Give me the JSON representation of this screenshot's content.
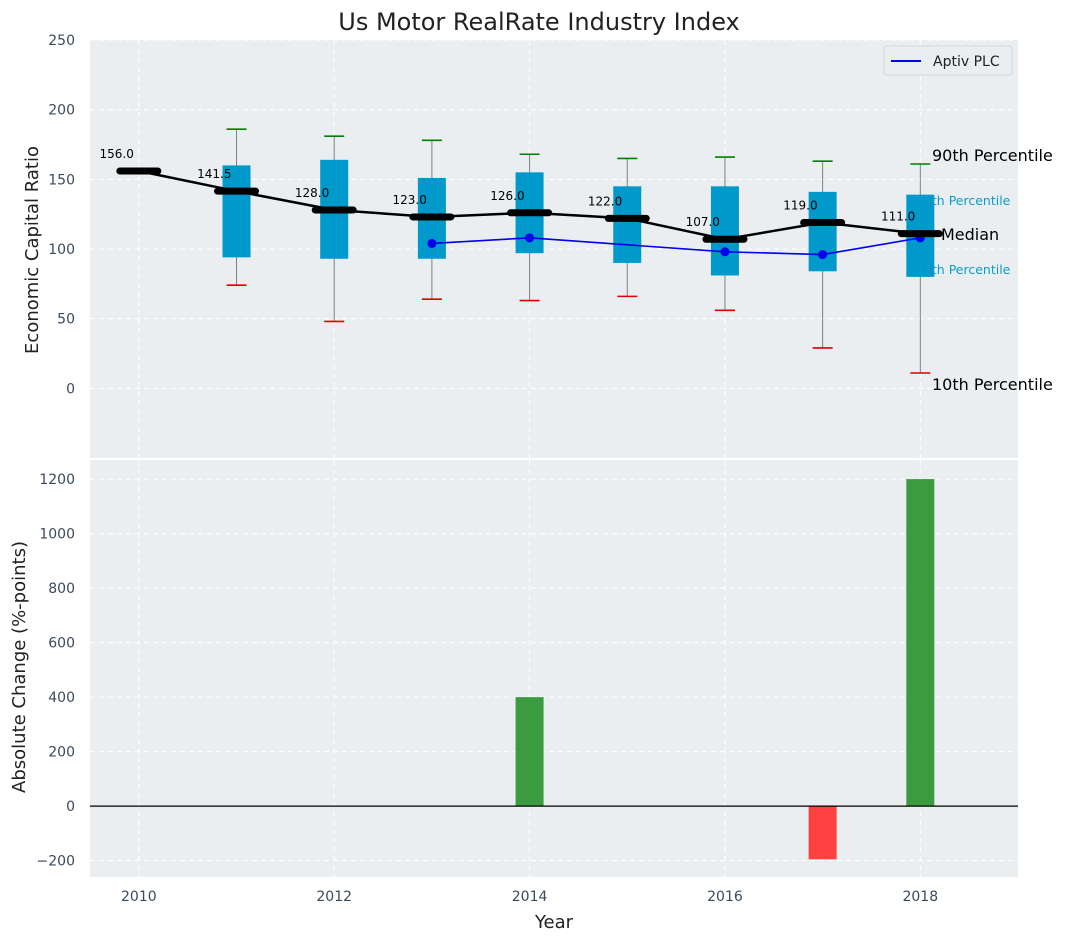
{
  "colors": {
    "panel_bg": "#eaeef0",
    "grid": "#ffffff",
    "box_fill": "#0099cc",
    "median_line": "#000000",
    "company_line": "#0000ee",
    "p90_cap": "#008000",
    "p10_cap": "#dd0000",
    "whisker": "#808080",
    "bar_positive": "#3a9c3e",
    "bar_negative": "#ff4040",
    "text": "#222222",
    "tick_text": "#3b4a5c",
    "p_label": "#0d9bcc"
  },
  "chart_data": [
    {
      "type": "box",
      "title": "Us Motor RealRate Industry Index",
      "xlabel": "",
      "ylabel": "Economic Capital Ratio",
      "xlim": [
        2009.5,
        2019
      ],
      "ylim": [
        -50,
        250
      ],
      "yticks": [
        0,
        50,
        100,
        150,
        200,
        250
      ],
      "grid": true,
      "legend": {
        "position": "top-right",
        "entries": [
          "Aptiv PLC"
        ]
      },
      "years": [
        2010,
        2011,
        2012,
        2013,
        2014,
        2015,
        2016,
        2017,
        2018
      ],
      "p10": [
        null,
        74,
        48,
        64,
        63,
        66,
        56,
        29,
        11
      ],
      "p25": [
        null,
        94,
        93,
        93,
        97,
        90,
        81,
        84,
        80
      ],
      "median": [
        156.0,
        141.5,
        128.0,
        123.0,
        126.0,
        122.0,
        107.0,
        119.0,
        111.0
      ],
      "median_labels": [
        "156.0",
        "141.5",
        "128.0",
        "123.0",
        "126.0",
        "122.0",
        "107.0",
        "119.0",
        "111.0"
      ],
      "p75": [
        null,
        160,
        164,
        151,
        155,
        145,
        145,
        141,
        139
      ],
      "p90": [
        null,
        186,
        181,
        178,
        168,
        165,
        166,
        163,
        161
      ],
      "series": [
        {
          "name": "Aptiv PLC",
          "years": [
            2013,
            2014,
            2015,
            2016,
            2017,
            2018
          ],
          "values": [
            104,
            108,
            103,
            98,
            96,
            108
          ],
          "markers": [
            true,
            true,
            false,
            true,
            true,
            true
          ]
        }
      ],
      "annotations": {
        "p90": "90th Percentile",
        "p75": "75th Percentile",
        "median": "Median",
        "p25": "25th Percentile",
        "p10": "10th Percentile"
      }
    },
    {
      "type": "bar",
      "xlabel": "Year",
      "ylabel": "Absolute Change (%-points)",
      "xlim": [
        2009.5,
        2019
      ],
      "ylim": [
        -260,
        1270
      ],
      "yticks": [
        -200,
        0,
        200,
        400,
        600,
        800,
        1000,
        1200
      ],
      "ytick_labels": [
        "−200",
        "0",
        "200",
        "400",
        "600",
        "800",
        "1000",
        "1200"
      ],
      "xticks": [
        2010,
        2012,
        2014,
        2016,
        2018
      ],
      "xtick_labels": [
        "2010",
        "2012",
        "2014",
        "2016",
        "2018"
      ],
      "grid": true,
      "years": [
        2010,
        2011,
        2012,
        2013,
        2014,
        2015,
        2016,
        2017,
        2018
      ],
      "values": [
        0,
        0,
        0,
        0,
        400,
        0,
        0,
        -195,
        1200
      ]
    }
  ]
}
